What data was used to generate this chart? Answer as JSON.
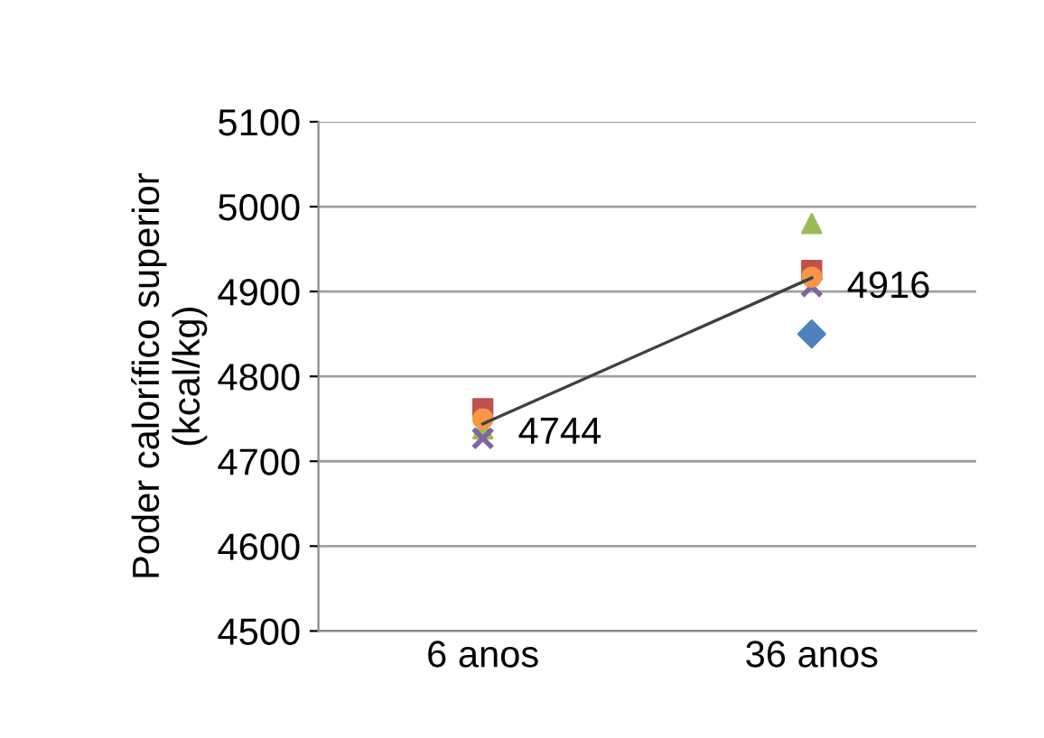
{
  "chart_data": {
    "type": "scatter",
    "ylabel": "Poder calorífico superior\n(kcal/kg)",
    "categories": [
      "6 anos",
      "36 anos"
    ],
    "ylim": [
      4500,
      5100
    ],
    "yticks": [
      4500,
      4600,
      4700,
      4800,
      4900,
      5000,
      5100
    ],
    "grid": "y",
    "legend": false,
    "series": [
      {
        "color": "#4f81bd",
        "marker": "diamond",
        "values": [
          null,
          4850
        ]
      },
      {
        "color": "#c0504d",
        "marker": "square",
        "values": [
          4762,
          4925
        ]
      },
      {
        "color": "#9bbb59",
        "marker": "triangle",
        "values": [
          4738,
          4980
        ]
      },
      {
        "color": "#8064a2",
        "marker": "cross",
        "values": [
          4727,
          4906
        ]
      },
      {
        "color": "#f79646",
        "marker": "circle",
        "values": [
          4750,
          4917
        ]
      },
      {
        "type": "line",
        "color": "#404040",
        "marker": "none",
        "values": [
          4744,
          4916
        ],
        "value_labels": [
          "4744",
          "4916"
        ]
      }
    ]
  }
}
